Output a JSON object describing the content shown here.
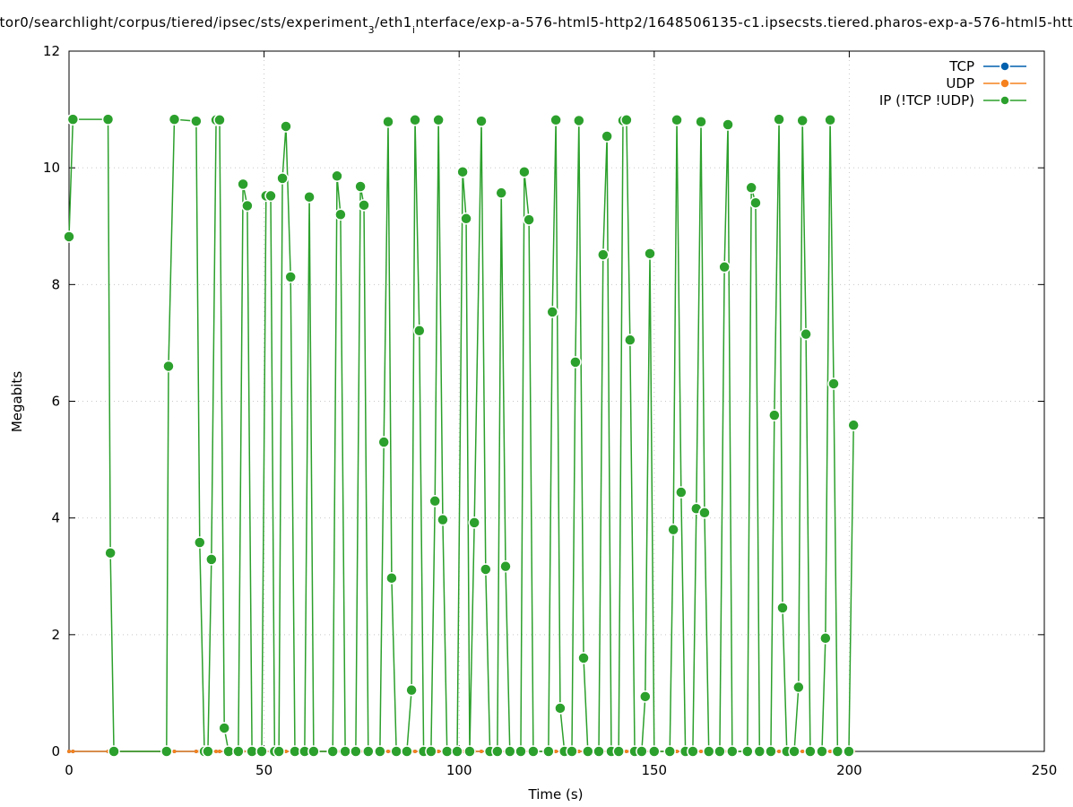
{
  "chart_data": {
    "type": "line",
    "title": [
      "tor0/searchlight/corpus/tiered/ipsec/sts/experiment",
      "3",
      "/eth1",
      "i",
      "nterface/exp-a-576-html5-http2/1648506135-c1.ipsecsts.tiered.pharos-exp-a-576-html5-htt"
    ],
    "x_label": "Time (s)",
    "y_label": "Megabits",
    "x": [
      0,
      1,
      10,
      10.6,
      11.5,
      25,
      25.5,
      27,
      32.6,
      33.5,
      34.7,
      35.6,
      36.5,
      37.7,
      38.6,
      39.8,
      40.9,
      43.4,
      44.6,
      45.7,
      46.9,
      49.4,
      50.5,
      51.7,
      52.7,
      53.8,
      54.7,
      55.6,
      56.8,
      57.9,
      60.4,
      61.6,
      62.7,
      67.6,
      68.7,
      69.6,
      70.8,
      73.5,
      74.7,
      75.6,
      76.7,
      79.7,
      80.7,
      81.8,
      82.7,
      83.9,
      86.6,
      87.8,
      88.7,
      89.8,
      90.9,
      92.8,
      93.8,
      94.7,
      95.8,
      96.9,
      99.5,
      100.9,
      101.8,
      102.7,
      103.9,
      105.7,
      106.8,
      107.9,
      109.8,
      110.8,
      111.9,
      113,
      115.8,
      116.7,
      117.9,
      119,
      122.9,
      123.9,
      124.8,
      125.9,
      127,
      128.9,
      129.8,
      130.7,
      131.9,
      133,
      135.8,
      136.9,
      137.9,
      139,
      140.9,
      142,
      142.9,
      143.8,
      145,
      146.8,
      147.7,
      148.9,
      150,
      154,
      154.9,
      155.8,
      156.9,
      158,
      159.9,
      160.8,
      162,
      162.9,
      164,
      166.8,
      168,
      168.9,
      170,
      173.9,
      174.9,
      176,
      177,
      179.9,
      180.8,
      182,
      182.9,
      184,
      185.9,
      187,
      188,
      188.9,
      190,
      193,
      193.9,
      195.1,
      196,
      197,
      199.9,
      201.1
    ],
    "series": [
      {
        "name": "TCP",
        "color": "#0060ad",
        "values": [
          0,
          0,
          0,
          0,
          0,
          0,
          0,
          0,
          0,
          0,
          0,
          0,
          0,
          0,
          0,
          0,
          0,
          0,
          0,
          0,
          0,
          0,
          0,
          0,
          0,
          0,
          0,
          0,
          0,
          0,
          0,
          0,
          0,
          0,
          0,
          0,
          0,
          0,
          0,
          0,
          0,
          0,
          0,
          0,
          0,
          0,
          0,
          0,
          0,
          0,
          0,
          0,
          0,
          0,
          0,
          0,
          0,
          0,
          0,
          0,
          0,
          0,
          0,
          0,
          0,
          0,
          0,
          0,
          0,
          0,
          0,
          0,
          0,
          0,
          0,
          0,
          0,
          0,
          0,
          0,
          0,
          0,
          0,
          0,
          0,
          0,
          0,
          0,
          0,
          0,
          0,
          0,
          0,
          0,
          0,
          0,
          0,
          0,
          0,
          0,
          0,
          0,
          0,
          0,
          0,
          0,
          0,
          0,
          0,
          0,
          0,
          0,
          0,
          0,
          0,
          0,
          0,
          0,
          0,
          0,
          0,
          0,
          0,
          0,
          0,
          0,
          0,
          0,
          0,
          0
        ]
      },
      {
        "name": "UDP",
        "color": "#f5821f",
        "values": [
          0,
          0,
          0,
          0,
          0,
          0,
          0,
          0,
          0,
          0,
          0,
          0,
          0,
          0,
          0,
          0,
          0,
          0,
          0,
          0,
          0,
          0,
          0,
          0,
          0,
          0,
          0,
          0,
          0,
          0,
          0,
          0,
          0,
          0,
          0,
          0,
          0,
          0,
          0,
          0,
          0,
          0,
          0,
          0,
          0,
          0,
          0,
          0,
          0,
          0,
          0,
          0,
          0,
          0,
          0,
          0,
          0,
          0,
          0,
          0,
          0,
          0,
          0,
          0,
          0,
          0,
          0,
          0,
          0,
          0,
          0,
          0,
          0,
          0,
          0,
          0,
          0,
          0,
          0,
          0,
          0,
          0,
          0,
          0,
          0,
          0,
          0,
          0,
          0,
          0,
          0,
          0,
          0,
          0,
          0,
          0,
          0,
          0,
          0,
          0,
          0,
          0,
          0,
          0,
          0,
          0,
          0,
          0,
          0,
          0,
          0,
          0,
          0,
          0,
          0,
          0,
          0,
          0,
          0,
          0,
          0,
          0,
          0,
          0,
          0,
          0,
          0,
          0,
          0,
          0
        ]
      },
      {
        "name": "IP (!TCP  !UDP)",
        "color": "#2ca02c",
        "values": [
          8.82,
          10.83,
          10.83,
          3.4,
          0,
          0,
          6.6,
          10.83,
          10.8,
          3.58,
          0,
          0,
          3.29,
          10.82,
          10.82,
          0.4,
          0,
          0,
          9.72,
          9.35,
          0,
          0,
          9.52,
          9.52,
          0,
          0,
          9.82,
          10.71,
          8.13,
          0,
          0,
          9.5,
          0,
          0,
          9.86,
          9.2,
          0,
          0,
          9.68,
          9.36,
          0,
          0,
          5.3,
          10.79,
          2.97,
          0,
          0,
          1.05,
          10.82,
          7.21,
          0,
          0,
          4.29,
          10.82,
          3.97,
          0,
          0,
          9.93,
          9.13,
          0,
          3.92,
          10.8,
          3.12,
          0,
          0,
          9.57,
          3.17,
          0,
          0,
          9.93,
          9.11,
          0,
          0,
          7.53,
          10.82,
          0.74,
          0,
          0,
          6.67,
          10.81,
          1.6,
          0,
          0,
          8.51,
          10.54,
          0,
          0,
          10.81,
          10.82,
          7.05,
          0,
          0,
          0.94,
          8.53,
          0,
          0,
          3.8,
          10.82,
          4.44,
          0,
          0,
          4.16,
          10.79,
          4.09,
          0,
          0,
          8.3,
          10.74,
          0,
          0,
          9.66,
          9.4,
          0,
          0,
          5.76,
          10.83,
          2.46,
          0,
          0,
          1.1,
          10.81,
          7.15,
          0,
          0,
          1.94,
          10.82,
          6.3,
          0,
          0,
          5.59
        ]
      }
    ],
    "xlim": [
      0,
      250
    ],
    "xticks": [
      0,
      50,
      100,
      150,
      200,
      250
    ],
    "ylim": [
      0,
      12
    ],
    "yticks": [
      0,
      2,
      4,
      6,
      8,
      10,
      12
    ],
    "grid": true,
    "legend": "top-right"
  }
}
